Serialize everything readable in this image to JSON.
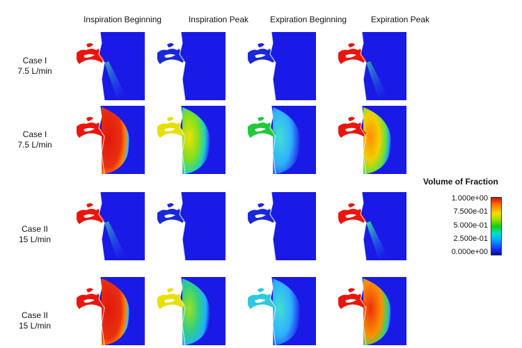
{
  "columns": [
    "Inspiration Beginning",
    "Inspiration Peak",
    "Expiration Beginning",
    "Expiration Peak"
  ],
  "rows": [
    {
      "case": "Case I",
      "flow": "7.5 L/min"
    },
    {
      "case": "Case I",
      "flow": "7.5 L/min"
    },
    {
      "case": "Case II",
      "flow": "15 L/min"
    },
    {
      "case": "Case II",
      "flow": "15 L/min"
    }
  ],
  "legend": {
    "title": "Volume of Fraction",
    "ticks": [
      "1.000e+00",
      "7.500e-01",
      "5.000e-01",
      "2.500e-01",
      "0.000e+00"
    ]
  },
  "colors": {
    "background_blue": "#1a1ae6",
    "high": "#e01a10",
    "low": "#1a1ae6"
  },
  "panels": [
    [
      {
        "airway": "red",
        "plume": "jet",
        "fill": 0
      },
      {
        "airway": "blue",
        "plume": "none",
        "fill": 0
      },
      {
        "airway": "blue",
        "plume": "none",
        "fill": 0
      },
      {
        "airway": "red",
        "plume": "jet",
        "fill": 0
      }
    ],
    [
      {
        "airway": "red",
        "plume": "cloud-red",
        "fill": 1
      },
      {
        "airway": "yellow",
        "plume": "cloud-yellow",
        "fill": 0.6
      },
      {
        "airway": "green",
        "plume": "cloud-cyan",
        "fill": 0.4
      },
      {
        "airway": "red",
        "plume": "cloud-orange",
        "fill": 0.8
      }
    ],
    [
      {
        "airway": "red",
        "plume": "jet",
        "fill": 0
      },
      {
        "airway": "blue",
        "plume": "none",
        "fill": 0
      },
      {
        "airway": "blue",
        "plume": "none",
        "fill": 0
      },
      {
        "airway": "red",
        "plume": "jet-strong",
        "fill": 0
      }
    ],
    [
      {
        "airway": "red",
        "plume": "cloud-red",
        "fill": 1
      },
      {
        "airway": "yellow",
        "plume": "cloud-green",
        "fill": 0.6
      },
      {
        "airway": "cyan",
        "plume": "cloud-cyan",
        "fill": 0.4
      },
      {
        "airway": "red",
        "plume": "cloud-red2",
        "fill": 0.8
      }
    ]
  ]
}
